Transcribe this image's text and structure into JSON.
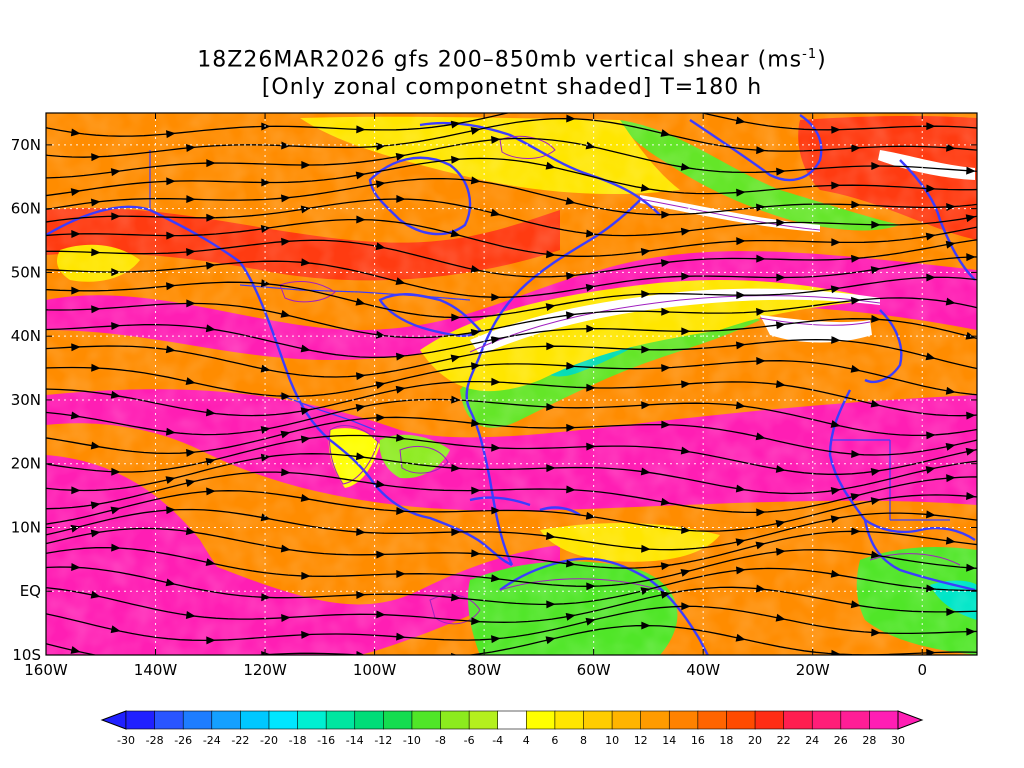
{
  "title": {
    "line1_prefix": "18Z26MAR2026 gfs 200–850mb vertical shear (ms",
    "line1_sup": "-1",
    "line1_suffix": ")",
    "line2": "[Only zonal componetnt shaded] T=180 h"
  },
  "axes": {
    "lat_labels": [
      "70N",
      "60N",
      "50N",
      "40N",
      "30N",
      "20N",
      "10N",
      "EQ",
      "10S"
    ],
    "lon_labels": [
      "160W",
      "140W",
      "120W",
      "100W",
      "80W",
      "60W",
      "40W",
      "20W",
      "0"
    ]
  },
  "colorbar": {
    "labels": [
      "-30",
      "-28",
      "-26",
      "-24",
      "-22",
      "-20",
      "-18",
      "-16",
      "-14",
      "-12",
      "-10",
      "-8",
      "-6",
      "-4",
      "4",
      "6",
      "8",
      "10",
      "12",
      "14",
      "16",
      "18",
      "20",
      "22",
      "24",
      "26",
      "28",
      "30"
    ],
    "colors": [
      "#2020ff",
      "#2a55ff",
      "#1e7dff",
      "#14a0ff",
      "#00c8ff",
      "#00e6ff",
      "#00f0d2",
      "#00e6a0",
      "#00dc78",
      "#14dc50",
      "#50e628",
      "#8ceb1e",
      "#b4f01e",
      "#ffffff",
      "#ffff00",
      "#ffe600",
      "#ffcd00",
      "#ffb400",
      "#ff9b00",
      "#ff8200",
      "#ff6400",
      "#ff4b00",
      "#ff2d14",
      "#ff1e50",
      "#ff1e78",
      "#ff1e96",
      "#ff1eb4"
    ]
  },
  "colors": {
    "coastline": "#3c3cff",
    "contour": "#a020c0",
    "streamline": "#000000"
  }
}
